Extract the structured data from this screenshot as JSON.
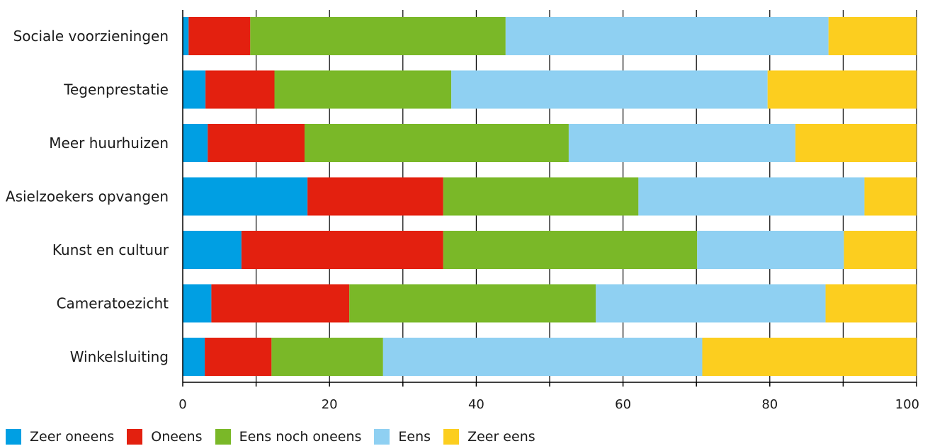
{
  "chart_data": {
    "type": "bar",
    "orientation": "horizontal",
    "stacked": true,
    "categories": [
      "Sociale voorzieningen",
      "Tegenprestatie",
      "Meer huurhuizen",
      "Asielzoekers opvangen",
      "Kunst en cultuur",
      "Cameratoezicht",
      "Winkelsluiting"
    ],
    "series": [
      {
        "name": "Zeer oneens",
        "color": "#009fe3",
        "values": [
          0.8,
          3.1,
          3.4,
          17,
          8,
          3.9,
          3
        ]
      },
      {
        "name": "Oneens",
        "color": "#e3200f",
        "values": [
          8.4,
          9.4,
          13.2,
          18.5,
          27.5,
          18.8,
          9.1
        ]
      },
      {
        "name": "Eens noch oneens",
        "color": "#7ab828",
        "values": [
          34.8,
          24.1,
          36,
          26.6,
          34.6,
          33.6,
          15.2
        ]
      },
      {
        "name": "Eens",
        "color": "#8fd0f2",
        "values": [
          44,
          43.1,
          30.9,
          30.8,
          20,
          31.3,
          43.5
        ]
      },
      {
        "name": "Zeer eens",
        "color": "#fcce1f",
        "values": [
          12,
          20.3,
          16.5,
          7.1,
          9.9,
          12.4,
          29.2
        ]
      }
    ],
    "xlim": [
      0,
      100
    ],
    "xticks": [
      "0",
      "20",
      "40",
      "60",
      "80",
      "100"
    ],
    "grid": "vertical lines at every 10, drawn behind bars",
    "legend_position": "bottom-left"
  }
}
